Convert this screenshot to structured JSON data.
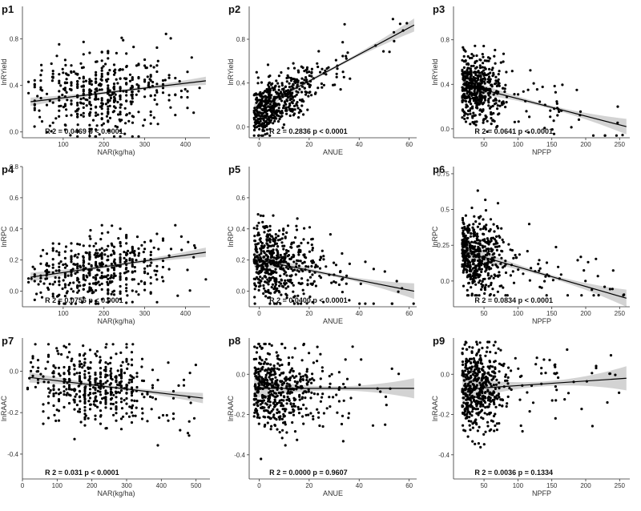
{
  "chart_data": [
    {
      "id": "p1",
      "type": "scatter",
      "xlabel": "NAR(kg/ha)",
      "ylabel": "lnRYield",
      "xlim": [
        0,
        460
      ],
      "ylim": [
        -0.05,
        1.08
      ],
      "xticks": [
        100,
        200,
        300,
        400
      ],
      "yticks": [
        0.0,
        0.4,
        0.8
      ],
      "stat": "R 2 = 0.0469  p < 0.0001",
      "fit": {
        "x": [
          20,
          450
        ],
        "y": [
          0.26,
          0.44
        ],
        "ci_ends": 0.035,
        "ci_mid": 0.012
      },
      "cloud": {
        "n": 480,
        "xmean": 200,
        "xsd": 95,
        "xmin": 20,
        "xmax": 450,
        "slope": 0.00042,
        "intercept": 0.252,
        "sd": 0.17,
        "ymin": -0.04,
        "ymax": 1.05
      }
    },
    {
      "id": "p2",
      "type": "scatter",
      "xlabel": "ANUE",
      "ylabel": "lnRYield",
      "xlim": [
        -4,
        63
      ],
      "ylim": [
        -0.1,
        1.1
      ],
      "xticks": [
        0,
        20,
        40,
        60
      ],
      "yticks": [
        0.0,
        0.4,
        0.8
      ],
      "stat": "R 2 = 0.2836  p < 0.0001",
      "fit": {
        "x": [
          -2,
          62
        ],
        "y": [
          0.15,
          0.93
        ],
        "ci_ends": 0.06,
        "ci_mid": 0.012
      },
      "cloud": {
        "n": 520,
        "xmean": 12,
        "xsd": 8,
        "xmin": -2,
        "xmax": 62,
        "slope": 0.0135,
        "intercept": 0.13,
        "sd": 0.12,
        "ymin": -0.08,
        "ymax": 1.06
      }
    },
    {
      "id": "p3",
      "type": "scatter",
      "xlabel": "NPFP",
      "ylabel": "lnRYield",
      "xlim": [
        5,
        265
      ],
      "ylim": [
        -0.08,
        1.1
      ],
      "xticks": [
        50,
        100,
        150,
        200,
        250
      ],
      "yticks": [
        0.0,
        0.4,
        0.8
      ],
      "stat": "R 2 = 0.0641  p < 0.0001",
      "fit": {
        "x": [
          18,
          260
        ],
        "y": [
          0.4,
          0.02
        ],
        "ci_ends": 0.07,
        "ci_mid": 0.015
      },
      "cloud": {
        "n": 520,
        "xmean": 50,
        "xsd": 22,
        "xmin": 18,
        "xmax": 260,
        "slope": -0.0016,
        "intercept": 0.43,
        "sd": 0.15,
        "ymin": -0.06,
        "ymax": 1.05
      }
    },
    {
      "id": "p4",
      "type": "scatter",
      "xlabel": "NAR(kg/ha)",
      "ylabel": "lnRPC",
      "xlim": [
        0,
        460
      ],
      "ylim": [
        -0.1,
        0.8
      ],
      "xticks": [
        100,
        200,
        300,
        400
      ],
      "yticks": [
        0.0,
        0.2,
        0.4,
        0.6,
        0.8
      ],
      "stat": "R 2 = 0.0756  p < 0.0001",
      "fit": {
        "x": [
          20,
          450
        ],
        "y": [
          0.09,
          0.25
        ],
        "ci_ends": 0.03,
        "ci_mid": 0.01
      },
      "cloud": {
        "n": 480,
        "xmean": 200,
        "xsd": 95,
        "xmin": 20,
        "xmax": 450,
        "slope": 0.00037,
        "intercept": 0.082,
        "sd": 0.11,
        "ymin": -0.08,
        "ymax": 0.76
      }
    },
    {
      "id": "p5",
      "type": "scatter",
      "xlabel": "ANUE",
      "ylabel": "lnRPC",
      "xlim": [
        -4,
        63
      ],
      "ylim": [
        -0.1,
        0.8
      ],
      "xticks": [
        0,
        20,
        40,
        60
      ],
      "yticks": [
        0.0,
        0.2,
        0.4,
        0.6
      ],
      "stat": "R 2 = 0.0400  p < 0.0001",
      "fit": {
        "x": [
          -2,
          62
        ],
        "y": [
          0.205,
          0.0
        ],
        "ci_ends": 0.05,
        "ci_mid": 0.01
      },
      "cloud": {
        "n": 520,
        "xmean": 12,
        "xsd": 8,
        "xmin": -2,
        "xmax": 62,
        "slope": -0.0032,
        "intercept": 0.2,
        "sd": 0.12,
        "ymin": -0.08,
        "ymax": 0.75
      }
    },
    {
      "id": "p6",
      "type": "scatter",
      "xlabel": "NPFP",
      "ylabel": "lnRPC",
      "xlim": [
        5,
        265
      ],
      "ylim": [
        -0.18,
        0.8
      ],
      "xticks": [
        50,
        100,
        150,
        200,
        250
      ],
      "yticks": [
        0.0,
        0.25,
        0.5,
        0.75
      ],
      "stat": "R 2 = 0.0834  p < 0.0001",
      "fit": {
        "x": [
          18,
          260
        ],
        "y": [
          0.21,
          -0.12
        ],
        "ci_ends": 0.06,
        "ci_mid": 0.012
      },
      "cloud": {
        "n": 520,
        "xmean": 50,
        "xsd": 22,
        "xmin": 18,
        "xmax": 260,
        "slope": -0.0014,
        "intercept": 0.23,
        "sd": 0.13,
        "ymin": -0.1,
        "ymax": 0.76
      }
    },
    {
      "id": "p7",
      "type": "scatter",
      "xlabel": "NAR(kg/ha)",
      "ylabel": "lnRAAC",
      "xlim": [
        0,
        540
      ],
      "ylim": [
        -0.52,
        0.16
      ],
      "xticks": [
        0,
        100,
        200,
        300,
        400,
        500
      ],
      "yticks": [
        -0.4,
        -0.2,
        0.0
      ],
      "stat": "R 2 = 0.031  p < 0.0001",
      "fit": {
        "x": [
          20,
          520
        ],
        "y": [
          -0.03,
          -0.13
        ],
        "ci_ends": 0.025,
        "ci_mid": 0.008
      },
      "cloud": {
        "n": 480,
        "xmean": 220,
        "xsd": 100,
        "xmin": 20,
        "xmax": 520,
        "slope": -0.0002,
        "intercept": -0.026,
        "sd": 0.09,
        "ymin": -0.5,
        "ymax": 0.13
      }
    },
    {
      "id": "p8",
      "type": "scatter",
      "xlabel": "ANUE",
      "ylabel": "lnRAAC",
      "xlim": [
        -4,
        63
      ],
      "ylim": [
        -0.52,
        0.18
      ],
      "xticks": [
        0,
        20,
        40,
        60
      ],
      "yticks": [
        -0.4,
        -0.2,
        0.0
      ],
      "stat": "R 2 = 0.0000  p = 0.9607",
      "fit": {
        "x": [
          -2,
          62
        ],
        "y": [
          -0.07,
          -0.07
        ],
        "ci_ends": 0.05,
        "ci_mid": 0.01
      },
      "cloud": {
        "n": 520,
        "xmean": 12,
        "xsd": 8,
        "xmin": -2,
        "xmax": 62,
        "slope": 0.0,
        "intercept": -0.07,
        "sd": 0.1,
        "ymin": -0.5,
        "ymax": 0.15
      }
    },
    {
      "id": "p9",
      "type": "scatter",
      "xlabel": "NPFP",
      "ylabel": "lnRAAC",
      "xlim": [
        5,
        265
      ],
      "ylim": [
        -0.52,
        0.18
      ],
      "xticks": [
        50,
        100,
        150,
        200,
        250
      ],
      "yticks": [
        -0.4,
        -0.2,
        0.0
      ],
      "stat": "R 2 = 0.0036  p = 0.1334",
      "fit": {
        "x": [
          18,
          260
        ],
        "y": [
          -0.075,
          -0.02
        ],
        "ci_ends": 0.06,
        "ci_mid": 0.012
      },
      "cloud": {
        "n": 520,
        "xmean": 50,
        "xsd": 22,
        "xmin": 18,
        "xmax": 260,
        "slope": 0.0002,
        "intercept": -0.08,
        "sd": 0.1,
        "ymin": -0.5,
        "ymax": 0.16
      }
    }
  ]
}
